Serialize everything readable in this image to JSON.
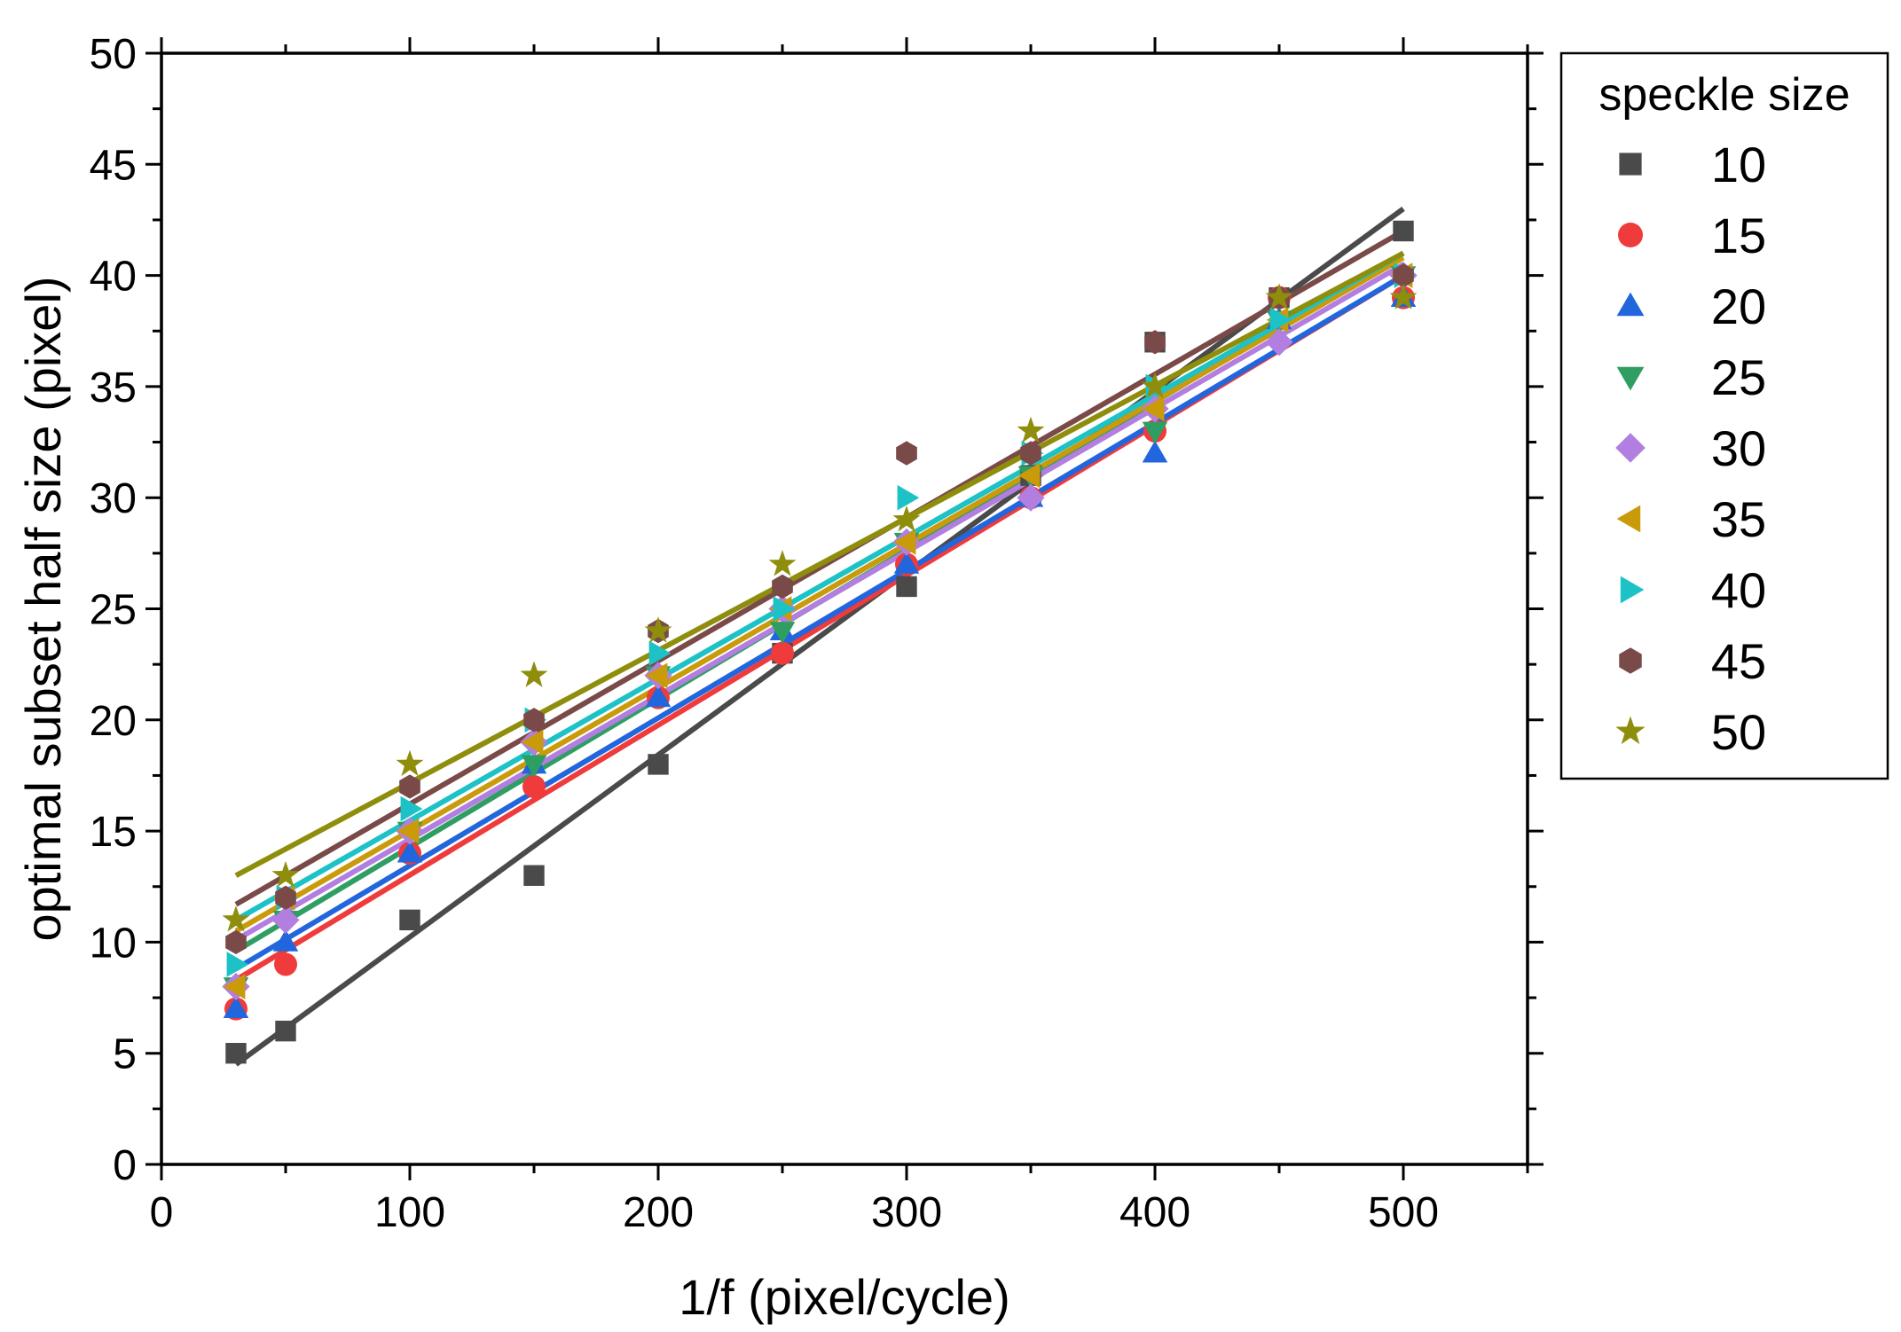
{
  "chart_data": {
    "type": "scatter",
    "xlabel": "1/f (pixel/cycle)",
    "ylabel": "optimal subset half size (pixel)",
    "xlim": [
      0,
      550
    ],
    "ylim": [
      0,
      50
    ],
    "xticks": [
      0,
      100,
      200,
      300,
      400,
      500
    ],
    "yticks": [
      0,
      5,
      10,
      15,
      20,
      25,
      30,
      35,
      40,
      45,
      50
    ],
    "grid": false,
    "legend": {
      "title": "speckle size",
      "position": "outside-right"
    },
    "x": [
      30,
      50,
      100,
      150,
      200,
      250,
      300,
      350,
      400,
      450,
      500
    ],
    "series": [
      {
        "name": "10",
        "marker": "square",
        "color": "#4a4a4a",
        "values": [
          5,
          6,
          11,
          13,
          18,
          23,
          26,
          31,
          37,
          39,
          42
        ],
        "fit": {
          "x": [
            30,
            500
          ],
          "y": [
            4.5,
            43
          ]
        }
      },
      {
        "name": "15",
        "marker": "circle",
        "color": "#ef3b3b",
        "values": [
          7,
          9,
          14,
          17,
          21,
          23,
          27,
          30,
          33,
          39,
          39
        ],
        "fit": {
          "x": [
            30,
            500
          ],
          "y": [
            8.3,
            40
          ]
        }
      },
      {
        "name": "20",
        "marker": "triangle-up",
        "color": "#2166dd",
        "values": [
          7,
          10,
          14,
          18,
          21,
          24,
          27,
          30,
          32,
          38,
          39
        ],
        "fit": {
          "x": [
            30,
            500
          ],
          "y": [
            8.8,
            40
          ]
        }
      },
      {
        "name": "25",
        "marker": "triangle-down",
        "color": "#2e9e62",
        "values": [
          8,
          11,
          15,
          18,
          22,
          24,
          28,
          31,
          33,
          38,
          40
        ],
        "fit": {
          "x": [
            30,
            500
          ],
          "y": [
            9.6,
            41
          ]
        }
      },
      {
        "name": "30",
        "marker": "diamond",
        "color": "#b27ee0",
        "values": [
          8,
          11,
          15,
          19,
          22,
          25,
          28,
          30,
          34,
          37,
          40
        ],
        "fit": {
          "x": [
            30,
            500
          ],
          "y": [
            10.1,
            40.5
          ]
        }
      },
      {
        "name": "35",
        "marker": "triangle-left",
        "color": "#c99a0a",
        "values": [
          8,
          12,
          15,
          19,
          22,
          25,
          28,
          31,
          34,
          38,
          40
        ],
        "fit": {
          "x": [
            30,
            500
          ],
          "y": [
            10.5,
            40.8
          ]
        }
      },
      {
        "name": "40",
        "marker": "triangle-right",
        "color": "#1cc2c6",
        "values": [
          9,
          12,
          16,
          20,
          23,
          25,
          30,
          32,
          35,
          38,
          40
        ],
        "fit": {
          "x": [
            30,
            500
          ],
          "y": [
            11,
            41
          ]
        }
      },
      {
        "name": "45",
        "marker": "hexagon",
        "color": "#7a4a48",
        "values": [
          10,
          12,
          17,
          20,
          24,
          26,
          32,
          32,
          37,
          39,
          40
        ],
        "fit": {
          "x": [
            30,
            500
          ],
          "y": [
            11.7,
            42
          ]
        }
      },
      {
        "name": "50",
        "marker": "star",
        "color": "#8e8e0c",
        "values": [
          11,
          13,
          18,
          22,
          24,
          27,
          29,
          33,
          35,
          39,
          39
        ],
        "fit": {
          "x": [
            30,
            500
          ],
          "y": [
            13,
            41
          ]
        }
      }
    ]
  }
}
